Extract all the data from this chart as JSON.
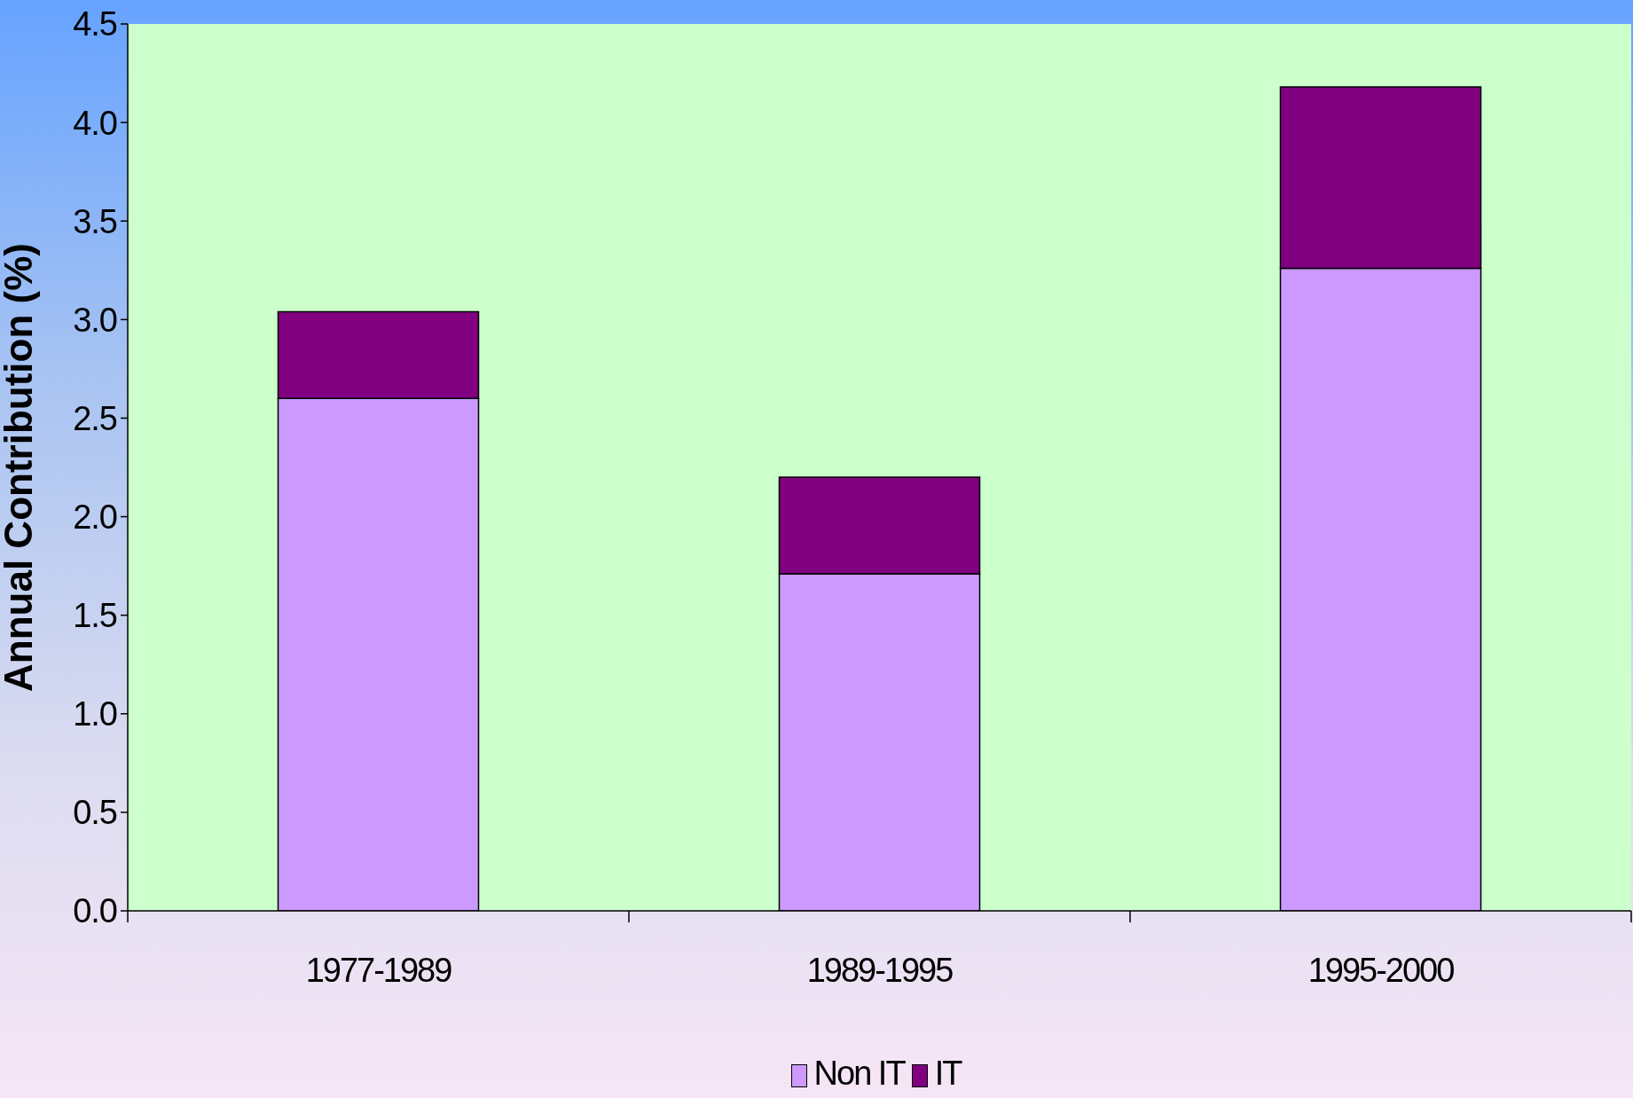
{
  "chart_data": {
    "type": "bar",
    "ylabel": "Annual Contribution (%)",
    "categories": [
      "1977-1989",
      "1989-1995",
      "1995-2000"
    ],
    "series": [
      {
        "name": "Non IT",
        "color": "#cc99ff",
        "values": [
          2.6,
          1.71,
          3.26
        ]
      },
      {
        "name": "IT",
        "color": "#800080",
        "values": [
          0.44,
          0.49,
          0.92
        ]
      }
    ],
    "stacked": true,
    "ylim": [
      0,
      4.5
    ],
    "yticks": [
      {
        "value": 0,
        "label": "0.0"
      },
      0.5,
      {
        "value": 1,
        "label": "1.0"
      },
      1.5,
      {
        "value": 2,
        "label": "2.0"
      },
      2.5,
      {
        "value": 3,
        "label": "3.0"
      },
      3.5,
      {
        "value": 4,
        "label": "4.0"
      },
      4.5
    ],
    "legend": "bottom"
  }
}
